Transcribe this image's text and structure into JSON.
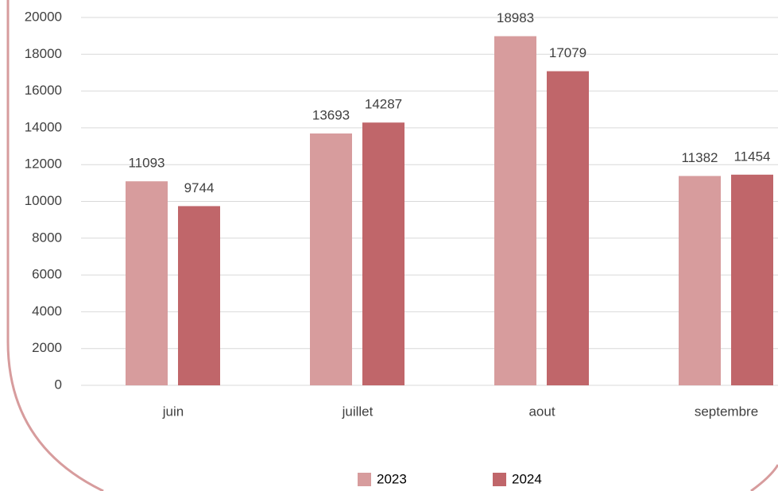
{
  "chart_data": {
    "type": "bar",
    "categories": [
      "juin",
      "juillet",
      "aout",
      "septembre"
    ],
    "series": [
      {
        "name": "2023",
        "color": "#d79c9d",
        "values": [
          11093,
          13693,
          18983,
          11382
        ]
      },
      {
        "name": "2024",
        "color": "#c0666a",
        "values": [
          9744,
          14287,
          17079,
          11454
        ]
      }
    ],
    "ylim": [
      0,
      20000
    ],
    "yticks": [
      0,
      2000,
      4000,
      6000,
      8000,
      10000,
      12000,
      14000,
      16000,
      18000,
      20000
    ],
    "grid": true,
    "data_labels": true,
    "legend": "bottom"
  }
}
